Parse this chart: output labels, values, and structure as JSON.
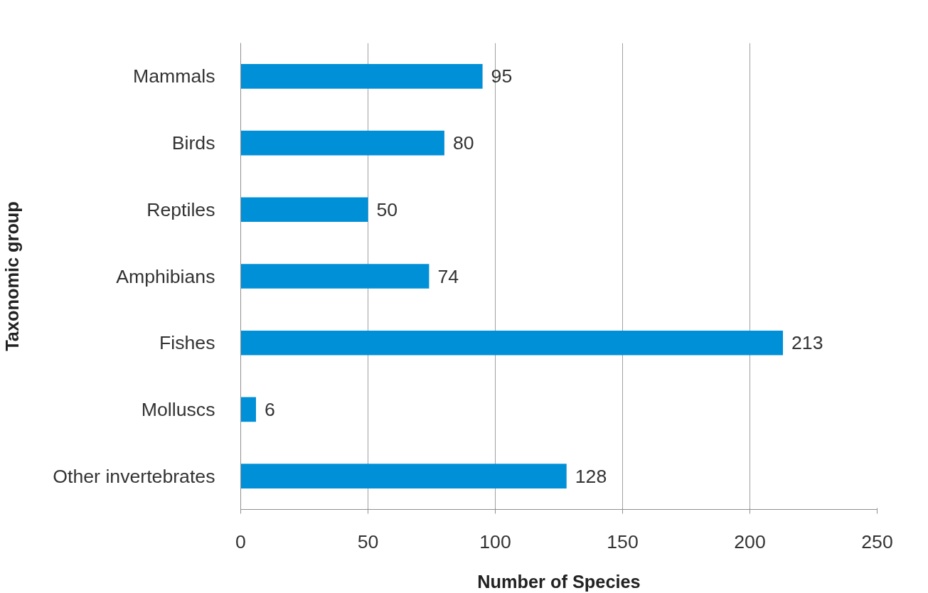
{
  "chart_data": {
    "type": "bar",
    "orientation": "horizontal",
    "xlabel": "Number of Species",
    "ylabel": "Taxonomic group",
    "categories": [
      "Mammals",
      "Birds",
      "Reptiles",
      "Amphibians",
      "Fishes",
      "Molluscs",
      "Other invertebrates"
    ],
    "values": [
      95,
      80,
      50,
      74,
      213,
      6,
      128
    ],
    "color": "#0090d8",
    "xlim": [
      0,
      250
    ],
    "xticks": [
      0,
      50,
      100,
      150,
      200,
      250
    ],
    "grid": "x",
    "data_labels": true
  }
}
